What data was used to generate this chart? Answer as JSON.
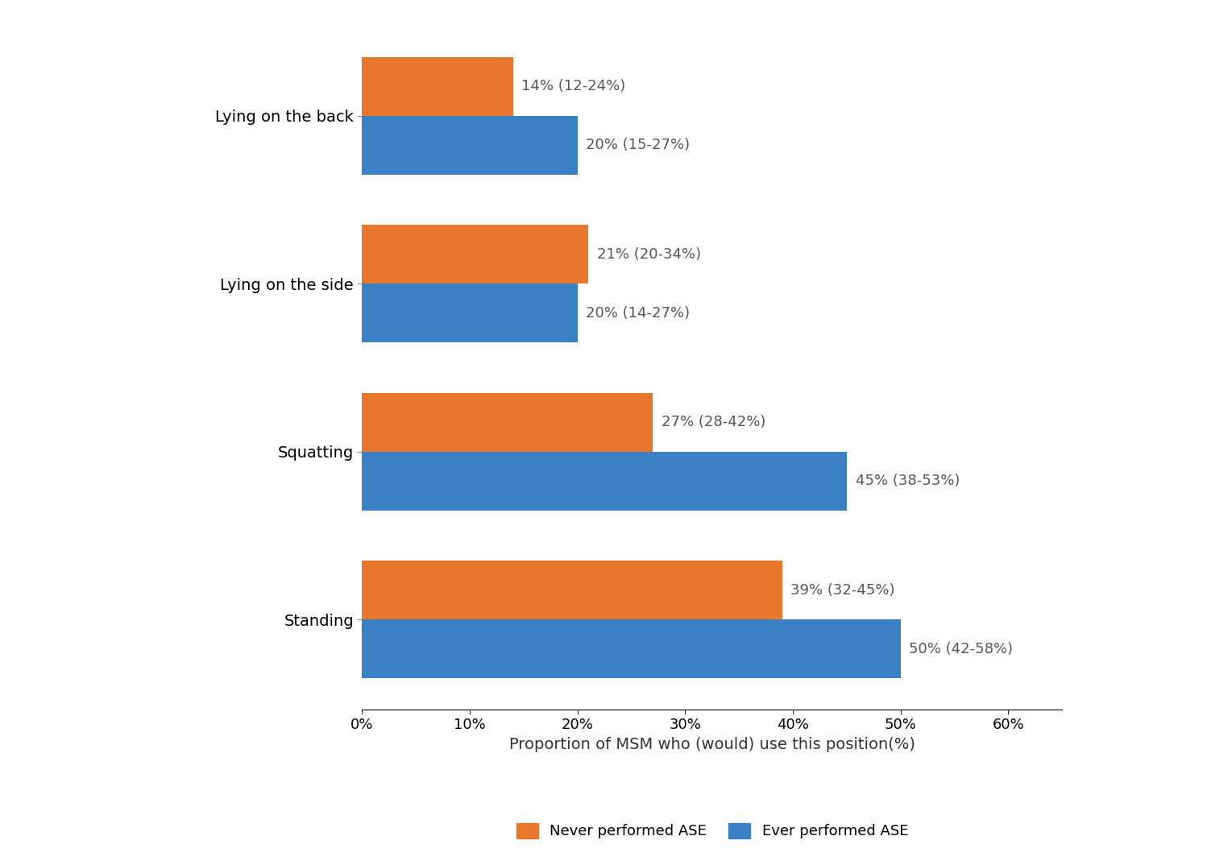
{
  "categories": [
    "Lying on the back",
    "Lying on the side",
    "Squatting",
    "Standing"
  ],
  "never_values": [
    14,
    21,
    27,
    39
  ],
  "ever_values": [
    20,
    20,
    45,
    50
  ],
  "never_labels": [
    "14% (12-24%)",
    "21% (20-34%)",
    "27% (28-42%)",
    "39% (32-45%)"
  ],
  "ever_labels": [
    "20% (15-27%)",
    "20% (14-27%)",
    "45% (38-53%)",
    "50% (42-58%)"
  ],
  "never_color": "#E8762C",
  "ever_color": "#3B7FC4",
  "xlabel": "Proportion of MSM who (would) use this position(%)",
  "xticks": [
    0,
    10,
    20,
    30,
    40,
    50,
    60
  ],
  "xlim": [
    0,
    65
  ],
  "legend_never": "Never performed ASE",
  "legend_ever": "Ever performed ASE",
  "bar_height": 0.35,
  "label_fontsize": 13,
  "tick_fontsize": 13,
  "xlabel_fontsize": 14,
  "ytick_fontsize": 14,
  "legend_fontsize": 13
}
